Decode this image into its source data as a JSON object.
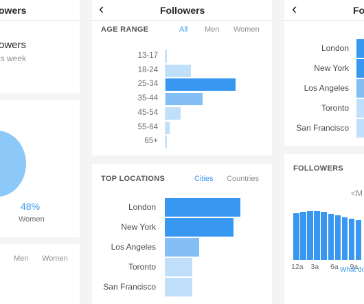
{
  "colors": {
    "bar_dark": "#3897f0",
    "bar_mid": "#83bff4",
    "bar_light": "#bfdffb",
    "accent": "#3897f0",
    "pie": "#8cc8f8"
  },
  "left_panel": {
    "title": "owers",
    "header_title": "owers",
    "header_sub": "is week",
    "women_pct": "48%",
    "women_label": "Women",
    "tabs": [
      "Men",
      "Women"
    ]
  },
  "mid_panel": {
    "back_icon": "back-chevron-icon",
    "title": "Followers",
    "age_range": {
      "heading": "AGE RANGE",
      "tabs": [
        "All",
        "Men",
        "Women"
      ],
      "active_tab": "All",
      "labels": [
        "13-17",
        "18-24",
        "25-34",
        "35-44",
        "45-54",
        "55-64",
        "65+"
      ]
    },
    "top_locations": {
      "heading": "TOP LOCATIONS",
      "tabs": [
        "Cities",
        "Countries"
      ],
      "active_tab": "Cities",
      "labels": [
        "London",
        "New York",
        "Los Angeles",
        "Toronto",
        "San Francisco"
      ]
    }
  },
  "right_panel": {
    "back_icon": "back-chevron-icon",
    "title": "Fo",
    "locations": [
      "London",
      "New York",
      "Los Angeles",
      "Toronto",
      "San Francisco"
    ],
    "followers_heading": "FOLLOWERS",
    "nav_text": "<M",
    "hours": [
      "12a",
      "3a",
      "6a",
      "9a"
    ],
    "link_text": "What do"
  },
  "chart_data": [
    {
      "type": "bar",
      "orientation": "horizontal",
      "categories": [
        "13-17",
        "18-24",
        "25-34",
        "35-44",
        "45-54",
        "55-64",
        "65+"
      ],
      "values": [
        1,
        17,
        47,
        25,
        10,
        3,
        1
      ],
      "xlim": [
        0,
        50
      ]
    },
    {
      "type": "bar",
      "orientation": "horizontal",
      "categories": [
        "London",
        "New York",
        "Los Angeles",
        "Toronto",
        "San Francisco"
      ],
      "values": [
        100,
        91,
        45,
        36,
        36
      ],
      "xlim": [
        0,
        100
      ]
    },
    {
      "type": "bar",
      "orientation": "vertical",
      "x_ticks": [
        "12a",
        "3a",
        "6a",
        "9a"
      ],
      "values": [
        68,
        70,
        71,
        71,
        70,
        67,
        65,
        62,
        60,
        58
      ],
      "ylim": [
        0,
        100
      ]
    }
  ]
}
